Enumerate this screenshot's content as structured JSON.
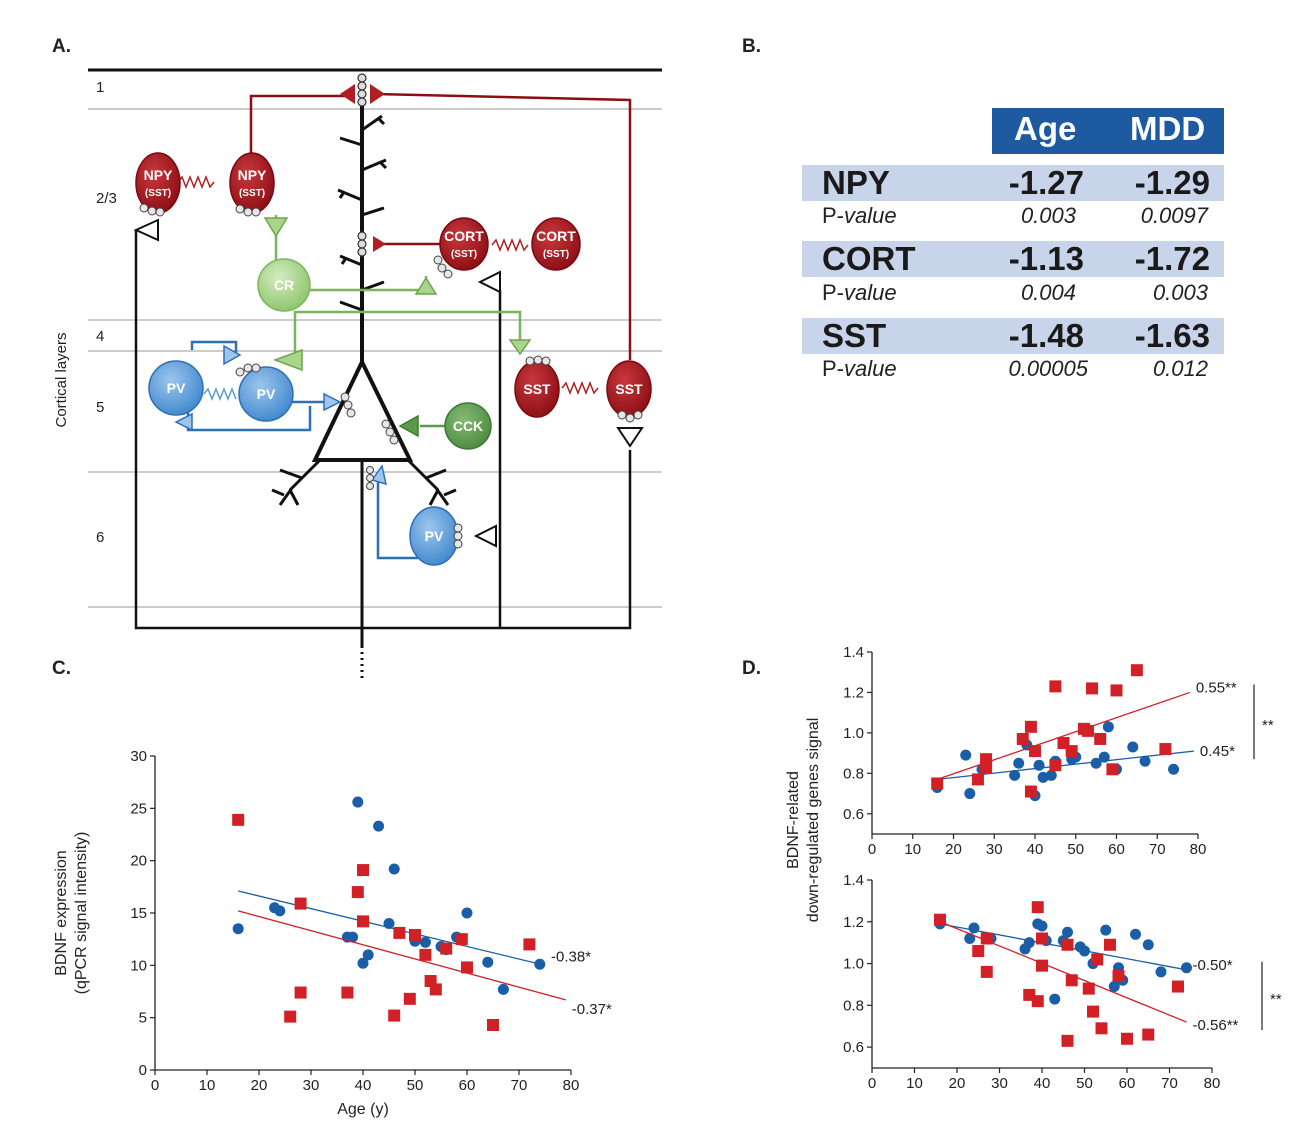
{
  "panels": {
    "a": "A.",
    "b": "B.",
    "c": "C.",
    "d": "D."
  },
  "panel_a": {
    "layers_axis_label": "Cortical layers",
    "layer_labels": [
      "1",
      "2/3",
      "4",
      "5",
      "6"
    ],
    "cells": {
      "npy_left": [
        "NPY",
        "(SST)"
      ],
      "npy_right": [
        "NPY",
        "(SST)"
      ],
      "cort_left": [
        "CORT",
        "(SST)"
      ],
      "cort_right": [
        "CORT",
        "(SST)"
      ],
      "cr": "CR",
      "pv_left": "PV",
      "pv_mid": "PV",
      "pv_low": "PV",
      "cck": "CCK",
      "sst_left": "SST",
      "sst_right": "SST"
    },
    "colors": {
      "red": "#b01f24",
      "green": "#a8d58a",
      "blue": "#5b9bd5",
      "dark_green": "#5a9a4a"
    }
  },
  "panel_b": {
    "columns": [
      "Age",
      "MDD"
    ],
    "p_label_prefix": "P-",
    "p_label_italic": "value",
    "rows": [
      {
        "gene": "NPY",
        "age": "-1.27",
        "mdd": "-1.29",
        "p_age": "0.003",
        "p_mdd": "0.0097"
      },
      {
        "gene": "CORT",
        "age": "-1.13",
        "mdd": "-1.72",
        "p_age": "0.004",
        "p_mdd": "0.003"
      },
      {
        "gene": "SST",
        "age": "-1.48",
        "mdd": "-1.63",
        "p_age": "0.00005",
        "p_mdd": "0.012"
      }
    ]
  },
  "chart_data": [
    {
      "id": "C",
      "type": "scatter",
      "xlabel": "Age (y)",
      "ylabel": [
        "BDNF expression",
        "(qPCR signal intensity)"
      ],
      "xlim": [
        0,
        80
      ],
      "ylim": [
        0,
        30
      ],
      "xticks": [
        "0",
        "10",
        "20",
        "30",
        "40",
        "50",
        "60",
        "70",
        "80"
      ],
      "yticks": [
        "0",
        "5",
        "10",
        "15",
        "20",
        "25",
        "30"
      ],
      "series": [
        {
          "color": "#1a5ea8",
          "marker": "circle",
          "points": [
            [
              16,
              13.5
            ],
            [
              23,
              15.5
            ],
            [
              24,
              15.2
            ],
            [
              37,
              12.7
            ],
            [
              38,
              12.7
            ],
            [
              39,
              25.6
            ],
            [
              40,
              10.2
            ],
            [
              41,
              11
            ],
            [
              43,
              23.3
            ],
            [
              45,
              14
            ],
            [
              46,
              19.2
            ],
            [
              50,
              12.3
            ],
            [
              52,
              12.2
            ],
            [
              55,
              11.8
            ],
            [
              56,
              11.5
            ],
            [
              58,
              12.7
            ],
            [
              60,
              15
            ],
            [
              64,
              10.3
            ],
            [
              67,
              7.7
            ],
            [
              74,
              10.1
            ]
          ],
          "fit": [
            [
              16,
              17.1
            ],
            [
              75,
              10
            ]
          ],
          "fit_label": "-0.38*"
        },
        {
          "color": "#d22027",
          "marker": "square",
          "points": [
            [
              16,
              23.9
            ],
            [
              26,
              5.1
            ],
            [
              28,
              15.9
            ],
            [
              28,
              7.4
            ],
            [
              37,
              7.4
            ],
            [
              39,
              17
            ],
            [
              40,
              19.1
            ],
            [
              40,
              14.2
            ],
            [
              46,
              5.2
            ],
            [
              47,
              13.1
            ],
            [
              49,
              6.8
            ],
            [
              50,
              12.9
            ],
            [
              52,
              11
            ],
            [
              53,
              8.5
            ],
            [
              54,
              7.7
            ],
            [
              56,
              11.6
            ],
            [
              59,
              12.5
            ],
            [
              60,
              9.8
            ],
            [
              65,
              4.3
            ],
            [
              72,
              12
            ]
          ],
          "fit": [
            [
              16,
              15.2
            ],
            [
              79,
              6.7
            ]
          ],
          "fit_label": "-0.37*"
        }
      ]
    },
    {
      "id": "D-top",
      "type": "scatter",
      "xlabel": "",
      "ylabel": [
        "BDNF-related",
        "down-regulated genes signal"
      ],
      "xlim": [
        0,
        80
      ],
      "ylim": [
        0.5,
        1.4
      ],
      "xticks": [
        "0",
        "10",
        "20",
        "30",
        "40",
        "50",
        "60",
        "70",
        "80"
      ],
      "yticks": [
        "0.6",
        "0.8",
        "1.0",
        "1.2",
        "1.4"
      ],
      "bracket_label": "**",
      "series": [
        {
          "color": "#1a5ea8",
          "marker": "circle",
          "points": [
            [
              16,
              0.73
            ],
            [
              23,
              0.89
            ],
            [
              24,
              0.7
            ],
            [
              27,
              0.82
            ],
            [
              35,
              0.79
            ],
            [
              36,
              0.85
            ],
            [
              38,
              0.94
            ],
            [
              39,
              0.71
            ],
            [
              40,
              0.69
            ],
            [
              41,
              0.84
            ],
            [
              42,
              0.78
            ],
            [
              44,
              0.79
            ],
            [
              45,
              0.86
            ],
            [
              49,
              0.87
            ],
            [
              50,
              0.88
            ],
            [
              55,
              0.85
            ],
            [
              57,
              0.88
            ],
            [
              58,
              1.03
            ],
            [
              60,
              0.82
            ],
            [
              64,
              0.93
            ],
            [
              67,
              0.86
            ],
            [
              74,
              0.82
            ]
          ],
          "fit": [
            [
              16,
              0.77
            ],
            [
              79,
              0.91
            ]
          ],
          "fit_label": "0.45*"
        },
        {
          "color": "#d22027",
          "marker": "square",
          "points": [
            [
              16,
              0.75
            ],
            [
              26,
              0.77
            ],
            [
              28,
              0.87
            ],
            [
              28,
              0.83
            ],
            [
              37,
              0.97
            ],
            [
              39,
              1.03
            ],
            [
              39,
              0.71
            ],
            [
              40,
              0.91
            ],
            [
              45,
              1.23
            ],
            [
              45,
              0.84
            ],
            [
              47,
              0.95
            ],
            [
              49,
              0.91
            ],
            [
              52,
              1.02
            ],
            [
              53,
              1.01
            ],
            [
              54,
              1.22
            ],
            [
              56,
              0.97
            ],
            [
              59,
              0.82
            ],
            [
              60,
              1.21
            ],
            [
              65,
              1.31
            ],
            [
              72,
              0.92
            ]
          ],
          "fit": [
            [
              16,
              0.77
            ],
            [
              78,
              1.2
            ]
          ],
          "fit_label": "0.55**"
        }
      ]
    },
    {
      "id": "D-bottom",
      "type": "scatter",
      "xlabel": "Age (y)",
      "ylabel": [],
      "xlim": [
        0,
        80
      ],
      "ylim": [
        0.5,
        1.4
      ],
      "xticks": [
        "0",
        "10",
        "20",
        "30",
        "40",
        "50",
        "60",
        "70",
        "80"
      ],
      "yticks": [
        "0.6",
        "0.8",
        "1.0",
        "1.2",
        "1.4"
      ],
      "bracket_label": "**",
      "series": [
        {
          "color": "#1a5ea8",
          "marker": "circle",
          "points": [
            [
              16,
              1.19
            ],
            [
              23,
              1.12
            ],
            [
              24,
              1.17
            ],
            [
              28,
              1.12
            ],
            [
              36,
              1.07
            ],
            [
              37,
              1.1
            ],
            [
              39,
              1.19
            ],
            [
              40,
              1.18
            ],
            [
              41,
              1.11
            ],
            [
              43,
              0.83
            ],
            [
              45,
              1.11
            ],
            [
              46,
              1.15
            ],
            [
              49,
              1.08
            ],
            [
              50,
              1.06
            ],
            [
              52,
              1.0
            ],
            [
              55,
              1.16
            ],
            [
              57,
              0.89
            ],
            [
              58,
              0.98
            ],
            [
              59,
              0.92
            ],
            [
              62,
              1.14
            ],
            [
              65,
              1.09
            ],
            [
              68,
              0.96
            ],
            [
              74,
              0.98
            ]
          ],
          "fit": [
            [
              16,
              1.19
            ],
            [
              74,
              0.97
            ]
          ],
          "fit_label": "-0.50*"
        },
        {
          "color": "#d22027",
          "marker": "square",
          "points": [
            [
              16,
              1.21
            ],
            [
              25,
              1.06
            ],
            [
              27,
              1.12
            ],
            [
              27,
              0.96
            ],
            [
              37,
              0.85
            ],
            [
              39,
              1.27
            ],
            [
              39,
              0.82
            ],
            [
              40,
              1.12
            ],
            [
              40,
              0.99
            ],
            [
              46,
              0.63
            ],
            [
              46,
              1.09
            ],
            [
              47,
              0.92
            ],
            [
              51,
              0.88
            ],
            [
              52,
              0.77
            ],
            [
              53,
              1.02
            ],
            [
              54,
              0.69
            ],
            [
              56,
              1.09
            ],
            [
              58,
              0.94
            ],
            [
              60,
              0.64
            ],
            [
              65,
              0.66
            ],
            [
              72,
              0.89
            ]
          ],
          "fit": [
            [
              16,
              1.2
            ],
            [
              74,
              0.72
            ]
          ],
          "fit_label": "-0.56**"
        }
      ]
    }
  ]
}
